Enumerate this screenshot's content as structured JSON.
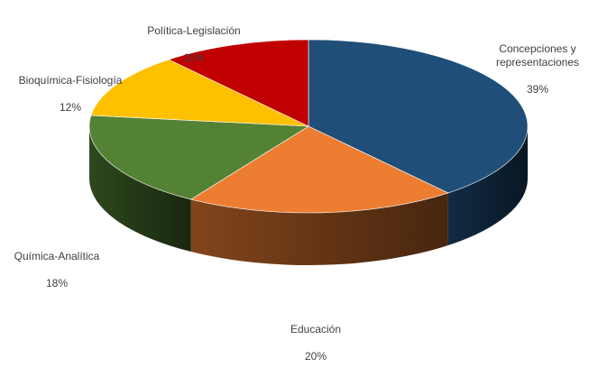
{
  "chart_data": {
    "type": "pie",
    "title": "",
    "slices": [
      {
        "label": "Concepciones y\nrepresentaciones",
        "value": 39,
        "percent_label": "39%",
        "color": "#1f4e79"
      },
      {
        "label": "Educación",
        "value": 20,
        "percent_label": "20%",
        "color": "#ed7d31"
      },
      {
        "label": "Química-Analítica",
        "value": 18,
        "percent_label": "18%",
        "color": "#548235"
      },
      {
        "label": "Bioquímica-Fisiología",
        "value": 12,
        "percent_label": "12%",
        "color": "#ffc000"
      },
      {
        "label": "Política-Legislación",
        "value": 11,
        "percent_label": "11%",
        "color": "#c00000"
      }
    ],
    "start_angle_deg": 0,
    "direction": "clockwise",
    "style": "3d"
  }
}
